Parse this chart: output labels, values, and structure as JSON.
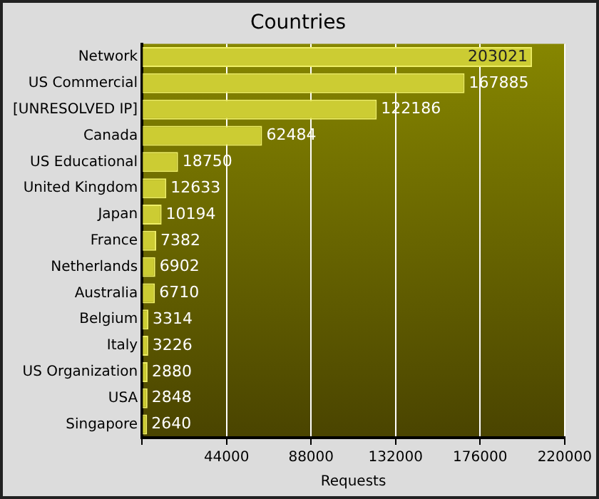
{
  "chart_data": {
    "type": "bar",
    "orientation": "horizontal",
    "title": "Countries",
    "xlabel": "Requests",
    "categories": [
      "Network",
      "US Commercial",
      "[UNRESOLVED IP]",
      "Canada",
      "US Educational",
      "United Kingdom",
      "Japan",
      "France",
      "Netherlands",
      "Australia",
      "Belgium",
      "Italy",
      "US Organization",
      "USA",
      "Singapore"
    ],
    "values": [
      203021,
      167885,
      122186,
      62484,
      18750,
      12633,
      10194,
      7382,
      6902,
      6710,
      3314,
      3226,
      2880,
      2848,
      2640
    ],
    "color": "#cccc33",
    "xlim": [
      0,
      220000
    ],
    "xticks": [
      {
        "value": 0,
        "label": null
      },
      44000,
      88000,
      132000,
      176000,
      220000
    ],
    "grid": "x",
    "legend": false,
    "data_labels": true
  }
}
